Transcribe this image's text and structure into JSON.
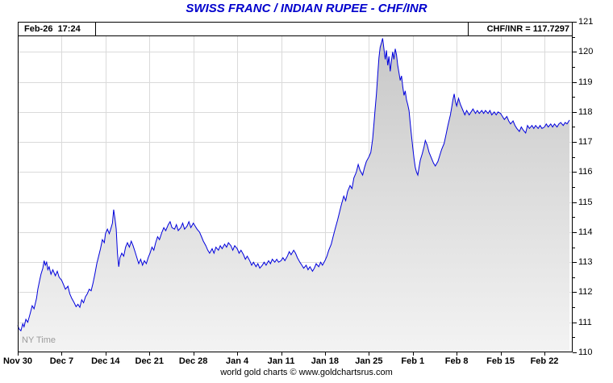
{
  "chart_data": {
    "type": "area",
    "title": "SWISS FRANC / INDIAN RUPEE - CHF/INR",
    "timestamp": "Feb-26  17:24",
    "quote_label": "CHF/INR = 117.7297",
    "pair": "CHF/INR",
    "last_value": 117.7297,
    "timezone_note": "NY Time",
    "footer": "world gold charts © www.goldchartsrus.com",
    "x_domain_days": [
      0,
      88.5
    ],
    "ylim": [
      110,
      121
    ],
    "y_major_step": 1,
    "y_minor_step": 0.5,
    "grid": true,
    "legend": "none",
    "x_ticks": [
      {
        "day": 0,
        "label": "Nov 30"
      },
      {
        "day": 7,
        "label": "Dec 7"
      },
      {
        "day": 14,
        "label": "Dec 14"
      },
      {
        "day": 21,
        "label": "Dec 21"
      },
      {
        "day": 28,
        "label": "Dec 28"
      },
      {
        "day": 35,
        "label": "Jan 4"
      },
      {
        "day": 42,
        "label": "Jan 11"
      },
      {
        "day": 49,
        "label": "Jan 18"
      },
      {
        "day": 56,
        "label": "Jan 25"
      },
      {
        "day": 63,
        "label": "Feb 1"
      },
      {
        "day": 70,
        "label": "Feb 8"
      },
      {
        "day": 77,
        "label": "Feb 15"
      },
      {
        "day": 84,
        "label": "Feb 22"
      }
    ],
    "y_ticks": [
      110,
      111,
      112,
      113,
      114,
      115,
      116,
      117,
      118,
      119,
      120,
      121
    ],
    "colors": {
      "title": "#0000cc",
      "line": "#0000dd",
      "fill_top": "#c5c5c5",
      "fill_bottom": "#f3f3f3",
      "grid": "#dadada",
      "axis": "#000000",
      "timezone_text": "#9c9c9c"
    },
    "series": [
      {
        "name": "CHF/INR",
        "points_day_value": [
          [
            0,
            110.9
          ],
          [
            0.2,
            110.78
          ],
          [
            0.5,
            110.72
          ],
          [
            0.8,
            110.95
          ],
          [
            1,
            110.85
          ],
          [
            1.3,
            111.1
          ],
          [
            1.6,
            111.0
          ],
          [
            2,
            111.3
          ],
          [
            2.3,
            111.55
          ],
          [
            2.6,
            111.45
          ],
          [
            3,
            111.8
          ],
          [
            3.2,
            112.1
          ],
          [
            3.5,
            112.4
          ],
          [
            3.7,
            112.6
          ],
          [
            4,
            112.8
          ],
          [
            4.2,
            113.05
          ],
          [
            4.4,
            112.9
          ],
          [
            4.6,
            113.0
          ],
          [
            4.8,
            112.75
          ],
          [
            5,
            112.85
          ],
          [
            5.3,
            112.6
          ],
          [
            5.6,
            112.75
          ],
          [
            6,
            112.55
          ],
          [
            6.3,
            112.7
          ],
          [
            6.6,
            112.5
          ],
          [
            7,
            112.4
          ],
          [
            7.3,
            112.25
          ],
          [
            7.6,
            112.1
          ],
          [
            8,
            112.2
          ],
          [
            8.3,
            111.95
          ],
          [
            8.6,
            111.8
          ],
          [
            9,
            111.65
          ],
          [
            9.3,
            111.52
          ],
          [
            9.6,
            111.6
          ],
          [
            9.9,
            111.5
          ],
          [
            10.2,
            111.75
          ],
          [
            10.5,
            111.65
          ],
          [
            10.8,
            111.85
          ],
          [
            11.1,
            111.95
          ],
          [
            11.4,
            112.1
          ],
          [
            11.7,
            112.05
          ],
          [
            12,
            112.3
          ],
          [
            12.3,
            112.6
          ],
          [
            12.6,
            112.95
          ],
          [
            12.9,
            113.2
          ],
          [
            13.2,
            113.45
          ],
          [
            13.5,
            113.75
          ],
          [
            13.8,
            113.65
          ],
          [
            14,
            113.95
          ],
          [
            14.3,
            114.1
          ],
          [
            14.6,
            113.95
          ],
          [
            14.9,
            114.15
          ],
          [
            15.1,
            114.3
          ],
          [
            15.3,
            114.75
          ],
          [
            15.5,
            114.45
          ],
          [
            15.7,
            114.1
          ],
          [
            15.9,
            113.3
          ],
          [
            16.1,
            112.85
          ],
          [
            16.3,
            113.15
          ],
          [
            16.6,
            113.3
          ],
          [
            16.9,
            113.2
          ],
          [
            17.2,
            113.5
          ],
          [
            17.5,
            113.65
          ],
          [
            17.8,
            113.5
          ],
          [
            18.1,
            113.7
          ],
          [
            18.4,
            113.55
          ],
          [
            18.7,
            113.35
          ],
          [
            19,
            113.15
          ],
          [
            19.3,
            112.95
          ],
          [
            19.6,
            113.1
          ],
          [
            19.9,
            112.9
          ],
          [
            20.2,
            113.05
          ],
          [
            20.5,
            112.95
          ],
          [
            20.8,
            113.15
          ],
          [
            21.1,
            113.3
          ],
          [
            21.4,
            113.5
          ],
          [
            21.7,
            113.4
          ],
          [
            22,
            113.65
          ],
          [
            22.3,
            113.85
          ],
          [
            22.6,
            113.75
          ],
          [
            23,
            114.0
          ],
          [
            23.3,
            114.15
          ],
          [
            23.6,
            114.05
          ],
          [
            24,
            114.25
          ],
          [
            24.3,
            114.35
          ],
          [
            24.6,
            114.15
          ],
          [
            25,
            114.1
          ],
          [
            25.3,
            114.25
          ],
          [
            25.6,
            114.05
          ],
          [
            26,
            114.15
          ],
          [
            26.3,
            114.3
          ],
          [
            26.6,
            114.1
          ],
          [
            27,
            114.2
          ],
          [
            27.3,
            114.35
          ],
          [
            27.6,
            114.15
          ],
          [
            28,
            114.3
          ],
          [
            28.3,
            114.2
          ],
          [
            28.6,
            114.1
          ],
          [
            29,
            114.0
          ],
          [
            29.3,
            113.85
          ],
          [
            29.6,
            113.7
          ],
          [
            30,
            113.55
          ],
          [
            30.3,
            113.4
          ],
          [
            30.6,
            113.3
          ],
          [
            31,
            113.45
          ],
          [
            31.3,
            113.3
          ],
          [
            31.6,
            113.5
          ],
          [
            32,
            113.4
          ],
          [
            32.3,
            113.55
          ],
          [
            32.6,
            113.45
          ],
          [
            33,
            113.6
          ],
          [
            33.3,
            113.5
          ],
          [
            33.6,
            113.65
          ],
          [
            34,
            113.55
          ],
          [
            34.3,
            113.4
          ],
          [
            34.6,
            113.55
          ],
          [
            35,
            113.45
          ],
          [
            35.3,
            113.3
          ],
          [
            35.6,
            113.4
          ],
          [
            36,
            113.25
          ],
          [
            36.3,
            113.1
          ],
          [
            36.6,
            113.2
          ],
          [
            37,
            113.05
          ],
          [
            37.3,
            112.9
          ],
          [
            37.6,
            113.0
          ],
          [
            38,
            112.85
          ],
          [
            38.3,
            112.95
          ],
          [
            38.6,
            112.8
          ],
          [
            39,
            112.9
          ],
          [
            39.3,
            113.0
          ],
          [
            39.6,
            112.9
          ],
          [
            40,
            113.05
          ],
          [
            40.3,
            112.95
          ],
          [
            40.6,
            113.1
          ],
          [
            41,
            113.0
          ],
          [
            41.3,
            113.1
          ],
          [
            41.6,
            113.0
          ],
          [
            42,
            113.05
          ],
          [
            42.3,
            113.15
          ],
          [
            42.6,
            113.05
          ],
          [
            43,
            113.2
          ],
          [
            43.3,
            113.35
          ],
          [
            43.6,
            113.25
          ],
          [
            44,
            113.4
          ],
          [
            44.3,
            113.3
          ],
          [
            44.6,
            113.15
          ],
          [
            45,
            113.0
          ],
          [
            45.3,
            112.9
          ],
          [
            45.6,
            112.8
          ],
          [
            46,
            112.9
          ],
          [
            46.3,
            112.75
          ],
          [
            46.6,
            112.85
          ],
          [
            47,
            112.7
          ],
          [
            47.3,
            112.8
          ],
          [
            47.6,
            112.95
          ],
          [
            48,
            112.85
          ],
          [
            48.3,
            113.0
          ],
          [
            48.6,
            112.9
          ],
          [
            49,
            113.05
          ],
          [
            49.3,
            113.2
          ],
          [
            49.6,
            113.4
          ],
          [
            50,
            113.6
          ],
          [
            50.3,
            113.85
          ],
          [
            50.6,
            114.1
          ],
          [
            51,
            114.4
          ],
          [
            51.3,
            114.65
          ],
          [
            51.6,
            114.9
          ],
          [
            52,
            115.2
          ],
          [
            52.3,
            115.05
          ],
          [
            52.6,
            115.35
          ],
          [
            53,
            115.55
          ],
          [
            53.3,
            115.45
          ],
          [
            53.6,
            115.8
          ],
          [
            54,
            116.0
          ],
          [
            54.3,
            116.25
          ],
          [
            54.6,
            116.05
          ],
          [
            55,
            115.9
          ],
          [
            55.3,
            116.15
          ],
          [
            55.6,
            116.35
          ],
          [
            56,
            116.5
          ],
          [
            56.3,
            116.65
          ],
          [
            56.6,
            117.1
          ],
          [
            56.8,
            117.6
          ],
          [
            57,
            118.1
          ],
          [
            57.2,
            118.6
          ],
          [
            57.4,
            119.2
          ],
          [
            57.6,
            119.8
          ],
          [
            57.8,
            120.15
          ],
          [
            58,
            120.3
          ],
          [
            58.2,
            120.45
          ],
          [
            58.4,
            120.1
          ],
          [
            58.6,
            119.75
          ],
          [
            58.8,
            120.05
          ],
          [
            59,
            119.55
          ],
          [
            59.2,
            119.85
          ],
          [
            59.4,
            119.35
          ],
          [
            59.6,
            119.7
          ],
          [
            59.8,
            120.0
          ],
          [
            60,
            119.75
          ],
          [
            60.2,
            120.1
          ],
          [
            60.4,
            119.9
          ],
          [
            60.6,
            119.55
          ],
          [
            60.8,
            119.3
          ],
          [
            61,
            119.05
          ],
          [
            61.2,
            119.2
          ],
          [
            61.4,
            118.85
          ],
          [
            61.6,
            118.55
          ],
          [
            61.8,
            118.7
          ],
          [
            62,
            118.4
          ],
          [
            62.2,
            118.25
          ],
          [
            62.4,
            118.05
          ],
          [
            62.6,
            117.6
          ],
          [
            62.8,
            117.2
          ],
          [
            63,
            116.8
          ],
          [
            63.2,
            116.45
          ],
          [
            63.4,
            116.15
          ],
          [
            63.6,
            116.0
          ],
          [
            63.8,
            115.9
          ],
          [
            64,
            116.15
          ],
          [
            64.2,
            116.4
          ],
          [
            64.5,
            116.6
          ],
          [
            64.8,
            116.85
          ],
          [
            65,
            117.05
          ],
          [
            65.3,
            116.9
          ],
          [
            65.6,
            116.65
          ],
          [
            66,
            116.45
          ],
          [
            66.3,
            116.3
          ],
          [
            66.6,
            116.2
          ],
          [
            67,
            116.35
          ],
          [
            67.3,
            116.55
          ],
          [
            67.6,
            116.75
          ],
          [
            68,
            116.95
          ],
          [
            68.3,
            117.25
          ],
          [
            68.6,
            117.55
          ],
          [
            69,
            117.9
          ],
          [
            69.2,
            118.15
          ],
          [
            69.4,
            118.4
          ],
          [
            69.6,
            118.6
          ],
          [
            69.8,
            118.35
          ],
          [
            70,
            118.2
          ],
          [
            70.3,
            118.45
          ],
          [
            70.6,
            118.25
          ],
          [
            71,
            118.05
          ],
          [
            71.3,
            117.9
          ],
          [
            71.6,
            118.05
          ],
          [
            72,
            117.9
          ],
          [
            72.3,
            118.0
          ],
          [
            72.6,
            118.1
          ],
          [
            73,
            117.95
          ],
          [
            73.3,
            118.05
          ],
          [
            73.6,
            117.95
          ],
          [
            74,
            118.05
          ],
          [
            74.3,
            117.95
          ],
          [
            74.6,
            118.05
          ],
          [
            75,
            117.95
          ],
          [
            75.3,
            118.05
          ],
          [
            75.6,
            117.9
          ],
          [
            76,
            118.0
          ],
          [
            76.3,
            117.9
          ],
          [
            76.6,
            118.0
          ],
          [
            77,
            117.95
          ],
          [
            77.3,
            117.85
          ],
          [
            77.6,
            117.75
          ],
          [
            78,
            117.85
          ],
          [
            78.3,
            117.7
          ],
          [
            78.6,
            117.6
          ],
          [
            79,
            117.7
          ],
          [
            79.3,
            117.55
          ],
          [
            79.6,
            117.45
          ],
          [
            80,
            117.35
          ],
          [
            80.3,
            117.5
          ],
          [
            80.6,
            117.4
          ],
          [
            81,
            117.3
          ],
          [
            81.3,
            117.55
          ],
          [
            81.6,
            117.45
          ],
          [
            82,
            117.55
          ],
          [
            82.3,
            117.45
          ],
          [
            82.6,
            117.55
          ],
          [
            83,
            117.45
          ],
          [
            83.3,
            117.55
          ],
          [
            83.6,
            117.45
          ],
          [
            84,
            117.5
          ],
          [
            84.3,
            117.6
          ],
          [
            84.6,
            117.5
          ],
          [
            85,
            117.6
          ],
          [
            85.3,
            117.5
          ],
          [
            85.6,
            117.6
          ],
          [
            86,
            117.5
          ],
          [
            86.3,
            117.6
          ],
          [
            86.6,
            117.65
          ],
          [
            87,
            117.55
          ],
          [
            87.3,
            117.65
          ],
          [
            87.6,
            117.6
          ],
          [
            88,
            117.7297
          ]
        ]
      }
    ]
  }
}
